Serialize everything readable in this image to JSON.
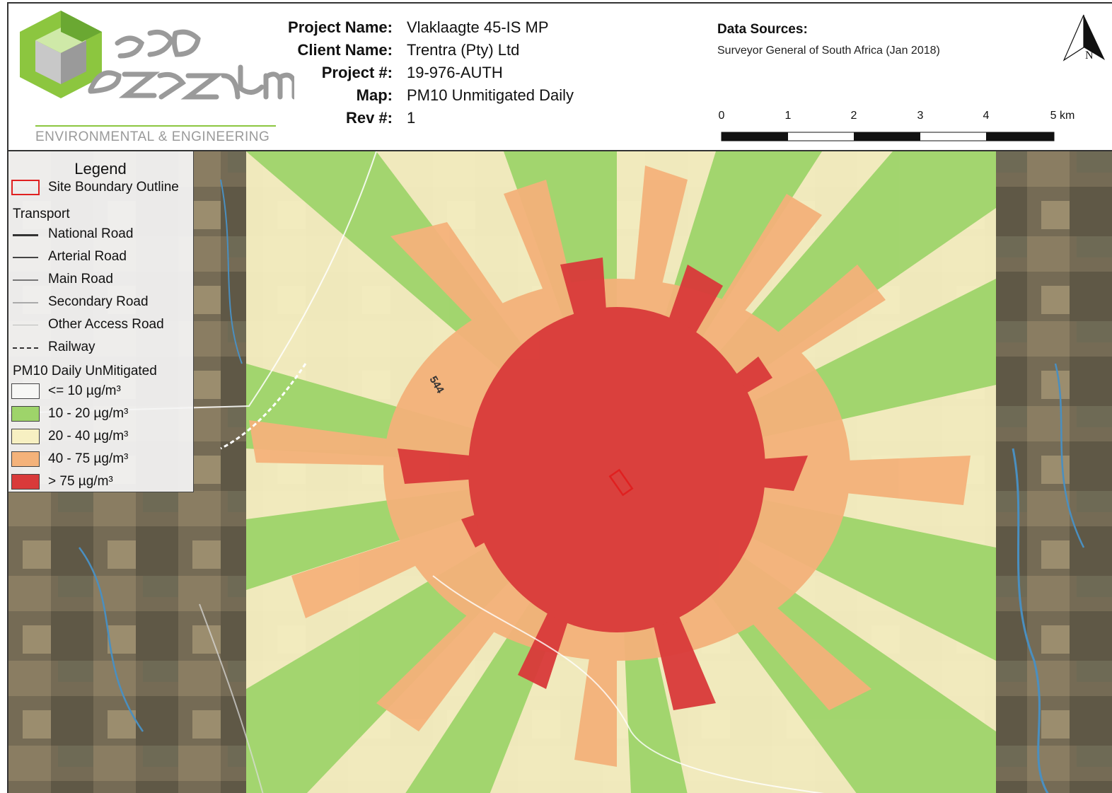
{
  "logo": {
    "subtitle": "ENVIRONMENTAL & ENGINEERING"
  },
  "project_info": [
    {
      "label": "Project Name:",
      "value": "Vlaklaagte 45-IS MP"
    },
    {
      "label": "Client Name:",
      "value": "Trentra (Pty) Ltd"
    },
    {
      "label": "Project #:",
      "value": "19-976-AUTH"
    },
    {
      "label": "Map:",
      "value": "PM10 Unmitigated Daily"
    },
    {
      "label": "Rev #:",
      "value": "1"
    }
  ],
  "data_sources": {
    "title": "Data Sources:",
    "text": "Surveyor General of South Africa (Jan 2018)"
  },
  "north_arrow": {
    "label": "N",
    "icon": "north-arrow-icon"
  },
  "scale_bar": {
    "ticks": [
      "0",
      "1",
      "2",
      "3",
      "4",
      "5 km"
    ]
  },
  "map": {
    "road_label": "544"
  },
  "legend": {
    "title": "Legend",
    "site_boundary": {
      "label": "Site Boundary Outline",
      "color": "#e02020"
    },
    "transport_heading": "Transport",
    "transport": [
      {
        "label": "National Road",
        "color": "#333333",
        "style": "solid-thick"
      },
      {
        "label": "Arterial Road",
        "color": "#444444",
        "style": "solid"
      },
      {
        "label": "Main Road",
        "color": "#777777",
        "style": "solid"
      },
      {
        "label": "Secondary Road",
        "color": "#aaaaaa",
        "style": "solid"
      },
      {
        "label": "Other Access Road",
        "color": "#bbbbbb",
        "style": "thin"
      },
      {
        "label": "Railway",
        "color": "#333333",
        "style": "dashed"
      }
    ],
    "pm10_heading": "PM10 Daily UnMitigated",
    "pm10": [
      {
        "label": "<= 10 µg/m³",
        "color": "#f7f7f5"
      },
      {
        "label": "10 - 20 µg/m³",
        "color": "#9ed46a"
      },
      {
        "label": "20 - 40 µg/m³",
        "color": "#f7f0c2"
      },
      {
        "label": "40 - 75 µg/m³",
        "color": "#f4b27a"
      },
      {
        "label": "> 75 µg/m³",
        "color": "#d93a3a"
      }
    ]
  }
}
